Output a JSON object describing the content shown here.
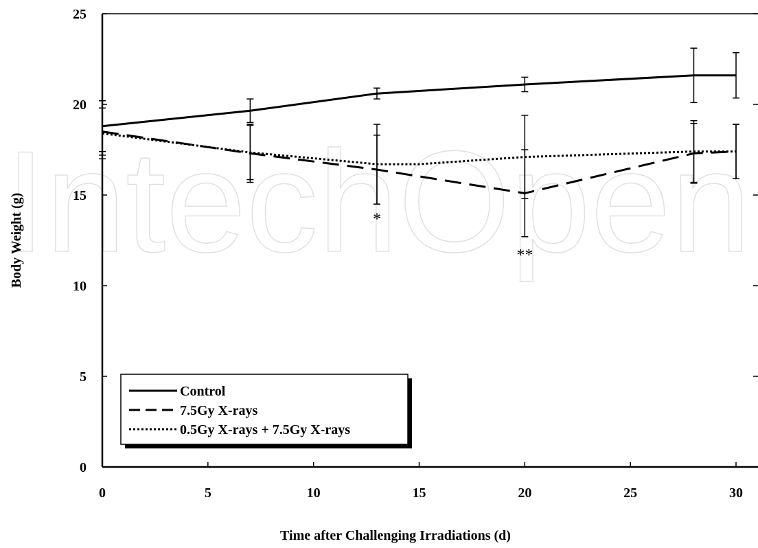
{
  "chart_data": {
    "type": "line",
    "title": "",
    "xlabel": "Time after Challenging Irradiations (d)",
    "ylabel": "Body Weight (g)",
    "xlim": [
      0,
      30
    ],
    "ylim": [
      0,
      25
    ],
    "xticks": [
      0,
      5,
      10,
      15,
      20,
      25,
      30
    ],
    "yticks": [
      0,
      5,
      10,
      15,
      20,
      25
    ],
    "grid": false,
    "legend_position": "bottom-left",
    "series": [
      {
        "name": "Control",
        "style": "solid",
        "x": [
          0,
          7,
          13,
          20,
          28,
          30
        ],
        "y": [
          18.8,
          19.65,
          20.6,
          21.1,
          21.6,
          21.6
        ],
        "err": [
          1.4,
          0.65,
          0.3,
          0.4,
          1.5,
          1.25
        ]
      },
      {
        "name": "7.5Gy X-rays",
        "style": "dashed",
        "x": [
          0,
          7,
          13,
          20,
          28,
          30
        ],
        "y": [
          18.5,
          17.3,
          16.4,
          15.1,
          17.3,
          17.4
        ],
        "err": [
          1.3,
          1.6,
          1.9,
          2.4,
          1.65,
          1.5
        ]
      },
      {
        "name": "0.5Gy X-rays + 7.5Gy X-rays",
        "style": "dotted",
        "x": [
          0,
          7,
          13,
          15,
          20,
          28,
          30
        ],
        "y": [
          18.4,
          17.35,
          16.7,
          16.7,
          17.1,
          17.4,
          17.4
        ],
        "err": [
          1.4,
          1.5,
          2.2,
          0,
          2.3,
          1.7,
          1.5
        ]
      }
    ],
    "annotations": [
      {
        "text": "*",
        "x": 13,
        "y": 13.7
      },
      {
        "text": "**",
        "x": 20,
        "y": 11.7
      }
    ]
  },
  "watermark": "IntechOpen"
}
